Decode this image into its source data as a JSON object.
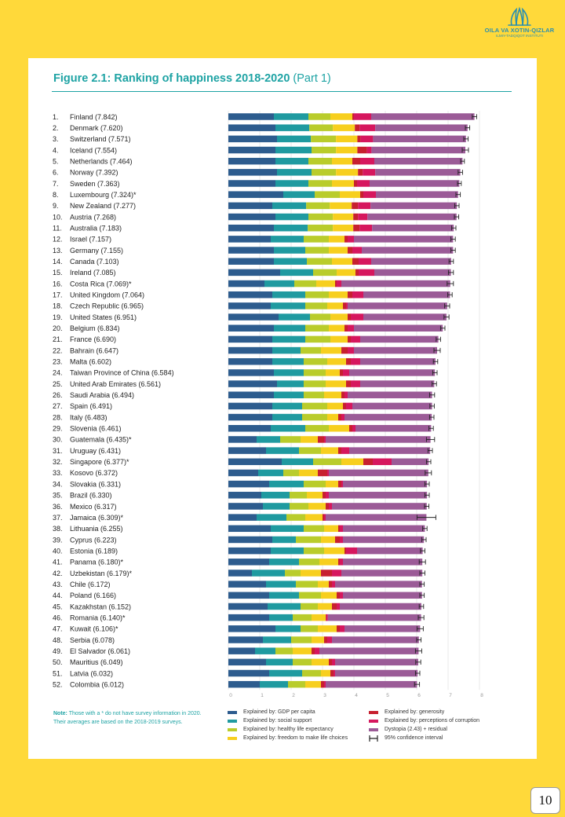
{
  "logo": {
    "line1": "OILA VA XOTIN-QIZLAR",
    "line2": "ILMIY-TADQIQOT INSTITUTI"
  },
  "figure": {
    "title": "Figure 2.1: Ranking of happiness 2018-2020",
    "part": "(Part 1)"
  },
  "note": {
    "label": "Note:",
    "text": "Those with a * do not have survey information in 2020. Their averages are based on the 2018-2019 surveys."
  },
  "legend": {
    "left": [
      {
        "label": "Explained by: GDP per capita",
        "color": "#2D5C8E"
      },
      {
        "label": "Explained by: social support",
        "color": "#1F9AA0"
      },
      {
        "label": "Explained by: healthy life expectancy",
        "color": "#B9CC2B"
      },
      {
        "label": "Explained by: freedom to make life choices",
        "color": "#F7CF1E"
      }
    ],
    "right": [
      {
        "label": "Explained by: generosity",
        "color": "#C7202F"
      },
      {
        "label": "Explained by: perceptions of corruption",
        "color": "#D6175E"
      },
      {
        "label": "Dystopia (2.43) + residual",
        "color": "#9B5B97"
      },
      {
        "label": "95% confidence interval",
        "color": "#222222"
      }
    ]
  },
  "page_number": "10",
  "chart_data": {
    "type": "bar",
    "orientation": "horizontal",
    "stacked": true,
    "xlim": [
      0,
      8
    ],
    "x_ticks": [
      "0",
      "1",
      "2",
      "3",
      "4",
      "5",
      "6",
      "7",
      "8"
    ],
    "grid": true,
    "series": [
      {
        "name": "Explained by: GDP per capita",
        "color": "#2D5C8E"
      },
      {
        "name": "Explained by: social support",
        "color": "#1F9AA0"
      },
      {
        "name": "Explained by: healthy life expectancy",
        "color": "#B9CC2B"
      },
      {
        "name": "Explained by: freedom to make life choices",
        "color": "#F7CF1E"
      },
      {
        "name": "Explained by: generosity",
        "color": "#C7202F"
      },
      {
        "name": "Explained by: perceptions of corruption",
        "color": "#D6175E"
      },
      {
        "name": "Dystopia (2.43) + residual",
        "color": "#9B5B97"
      }
    ],
    "rows": [
      {
        "rank": "1.",
        "label": "Finland (7.842)",
        "parts": [
          1.45,
          1.1,
          0.7,
          0.7,
          0.05,
          0.55,
          3.29
        ],
        "ci": 0.07
      },
      {
        "rank": "2.",
        "label": "Denmark (7.620)",
        "parts": [
          1.5,
          1.08,
          0.75,
          0.7,
          0.15,
          0.5,
          2.94
        ],
        "ci": 0.07
      },
      {
        "rank": "3.",
        "label": "Switzerland (7.571)",
        "parts": [
          1.55,
          1.08,
          0.8,
          0.68,
          0.1,
          0.4,
          2.96
        ],
        "ci": 0.07
      },
      {
        "rank": "4.",
        "label": "Iceland (7.554)",
        "parts": [
          1.5,
          1.15,
          0.78,
          0.68,
          0.3,
          0.15,
          2.99
        ],
        "ci": 0.1
      },
      {
        "rank": "5.",
        "label": "Netherlands (7.464)",
        "parts": [
          1.5,
          1.05,
          0.75,
          0.65,
          0.25,
          0.45,
          2.81
        ],
        "ci": 0.06
      },
      {
        "rank": "6.",
        "label": "Norway (7.392)",
        "parts": [
          1.55,
          1.1,
          0.78,
          0.7,
          0.15,
          0.4,
          2.71
        ],
        "ci": 0.07
      },
      {
        "rank": "7.",
        "label": "Sweden (7.363)",
        "parts": [
          1.5,
          1.05,
          0.75,
          0.7,
          0.1,
          0.4,
          2.86
        ],
        "ci": 0.06
      },
      {
        "rank": "8.",
        "label": "Luxembourg (7.324)*",
        "parts": [
          1.75,
          1.0,
          0.8,
          0.65,
          0.1,
          0.4,
          2.62
        ],
        "ci": 0.07
      },
      {
        "rank": "9.",
        "label": "New Zealand (7.277)",
        "parts": [
          1.4,
          1.08,
          0.75,
          0.7,
          0.2,
          0.4,
          2.75
        ],
        "ci": 0.07
      },
      {
        "rank": "10.",
        "label": "Austria (7.268)",
        "parts": [
          1.5,
          1.05,
          0.78,
          0.65,
          0.15,
          0.3,
          2.84
        ],
        "ci": 0.07
      },
      {
        "rank": "11.",
        "label": "Australia (7.183)",
        "parts": [
          1.45,
          1.08,
          0.8,
          0.65,
          0.2,
          0.4,
          2.6
        ],
        "ci": 0.07
      },
      {
        "rank": "12.",
        "label": "Israel (7.157)",
        "parts": [
          1.35,
          1.05,
          0.8,
          0.5,
          0.1,
          0.2,
          3.16
        ],
        "ci": 0.07
      },
      {
        "rank": "13.",
        "label": "Germany (7.155)",
        "parts": [
          1.45,
          1.0,
          0.75,
          0.6,
          0.15,
          0.3,
          2.91
        ],
        "ci": 0.07
      },
      {
        "rank": "14.",
        "label": "Canada (7.103)",
        "parts": [
          1.45,
          1.05,
          0.8,
          0.65,
          0.2,
          0.4,
          2.55
        ],
        "ci": 0.07
      },
      {
        "rank": "15.",
        "label": "Ireland (7.085)",
        "parts": [
          1.65,
          1.05,
          0.75,
          0.6,
          0.1,
          0.5,
          2.44
        ],
        "ci": 0.08
      },
      {
        "rank": "16.",
        "label": "Costa Rica (7.069)*",
        "parts": [
          1.15,
          0.95,
          0.7,
          0.6,
          0.05,
          0.15,
          3.47
        ],
        "ci": 0.1
      },
      {
        "rank": "17.",
        "label": "United Kingdom (7.064)",
        "parts": [
          1.4,
          1.05,
          0.75,
          0.6,
          0.15,
          0.35,
          2.76
        ],
        "ci": 0.07
      },
      {
        "rank": "18.",
        "label": "Czech Republic (6.965)",
        "parts": [
          1.35,
          1.1,
          0.7,
          0.5,
          0.1,
          0.05,
          3.17
        ],
        "ci": 0.08
      },
      {
        "rank": "19.",
        "label": "United States (6.951)",
        "parts": [
          1.6,
          1.0,
          0.65,
          0.55,
          0.1,
          0.4,
          2.65
        ],
        "ci": 0.08
      },
      {
        "rank": "20.",
        "label": "Belgium (6.834)",
        "parts": [
          1.45,
          1.0,
          0.75,
          0.5,
          0.1,
          0.2,
          2.83
        ],
        "ci": 0.07
      },
      {
        "rank": "21.",
        "label": "France (6.690)",
        "parts": [
          1.4,
          1.05,
          0.8,
          0.55,
          0.1,
          0.3,
          2.49
        ],
        "ci": 0.07
      },
      {
        "rank": "22.",
        "label": "Bahrain (6.647)",
        "parts": [
          1.4,
          0.9,
          0.65,
          0.65,
          0.2,
          0.2,
          2.65
        ],
        "ci": 0.1
      },
      {
        "rank": "23.",
        "label": "Malta (6.602)",
        "parts": [
          1.4,
          1.0,
          0.75,
          0.6,
          0.15,
          0.3,
          2.4
        ],
        "ci": 0.07
      },
      {
        "rank": "24.",
        "label": "Taiwan Province of China (6.584)",
        "parts": [
          1.45,
          0.95,
          0.7,
          0.45,
          0.1,
          0.2,
          2.73
        ],
        "ci": 0.07
      },
      {
        "rank": "25.",
        "label": "United Arab Emirates (6.561)",
        "parts": [
          1.55,
          0.85,
          0.7,
          0.65,
          0.15,
          0.3,
          2.36
        ],
        "ci": 0.07
      },
      {
        "rank": "26.",
        "label": "Saudi Arabia (6.494)",
        "parts": [
          1.45,
          0.95,
          0.65,
          0.55,
          0.1,
          0.1,
          2.69
        ],
        "ci": 0.08
      },
      {
        "rank": "27.",
        "label": "Spain (6.491)",
        "parts": [
          1.4,
          0.95,
          0.8,
          0.5,
          0.1,
          0.2,
          2.54
        ],
        "ci": 0.07
      },
      {
        "rank": "28.",
        "label": "Italy (6.483)",
        "parts": [
          1.4,
          0.95,
          0.8,
          0.35,
          0.1,
          0.1,
          2.78
        ],
        "ci": 0.07
      },
      {
        "rank": "29.",
        "label": "Slovenia (6.461)",
        "parts": [
          1.35,
          1.1,
          0.75,
          0.65,
          0.1,
          0.1,
          2.41
        ],
        "ci": 0.07
      },
      {
        "rank": "30.",
        "label": "Guatemala (6.435)*",
        "parts": [
          0.9,
          0.75,
          0.65,
          0.55,
          0.2,
          0.05,
          3.34
        ],
        "ci": 0.13
      },
      {
        "rank": "31.",
        "label": "Uruguay (6.431)",
        "parts": [
          1.2,
          1.05,
          0.7,
          0.55,
          0.1,
          0.25,
          2.58
        ],
        "ci": 0.07
      },
      {
        "rank": "32.",
        "label": "Singapore (6.377)*",
        "parts": [
          1.7,
          1.0,
          0.9,
          0.7,
          0.3,
          0.6,
          1.18
        ],
        "ci": 0.07
      },
      {
        "rank": "33.",
        "label": "Kosovo (6.372)",
        "parts": [
          0.95,
          0.8,
          0.5,
          0.6,
          0.3,
          0.05,
          3.17
        ],
        "ci": 0.1
      },
      {
        "rank": "34.",
        "label": "Slovakia (6.331)",
        "parts": [
          1.3,
          1.1,
          0.7,
          0.4,
          0.1,
          0.05,
          2.68
        ],
        "ci": 0.07
      },
      {
        "rank": "35.",
        "label": "Brazil (6.330)",
        "parts": [
          1.05,
          0.9,
          0.55,
          0.5,
          0.1,
          0.1,
          3.13
        ],
        "ci": 0.07
      },
      {
        "rank": "36.",
        "label": "Mexico (6.317)",
        "parts": [
          1.1,
          0.85,
          0.6,
          0.55,
          0.1,
          0.1,
          3.02
        ],
        "ci": 0.07
      },
      {
        "rank": "37.",
        "label": "Jamaica (6.309)*",
        "parts": [
          0.9,
          0.95,
          0.6,
          0.55,
          0.05,
          0.05,
          3.21
        ],
        "ci": 0.3
      },
      {
        "rank": "38.",
        "label": "Lithuania (6.255)",
        "parts": [
          1.35,
          1.05,
          0.65,
          0.45,
          0.05,
          0.1,
          2.61
        ],
        "ci": 0.07
      },
      {
        "rank": "39.",
        "label": "Cyprus (6.223)",
        "parts": [
          1.4,
          0.75,
          0.8,
          0.45,
          0.15,
          0.1,
          2.58
        ],
        "ci": 0.07
      },
      {
        "rank": "40.",
        "label": "Estonia (6.189)",
        "parts": [
          1.35,
          1.05,
          0.65,
          0.65,
          0.05,
          0.35,
          2.09
        ],
        "ci": 0.07
      },
      {
        "rank": "41.",
        "label": "Panama (6.180)*",
        "parts": [
          1.3,
          0.95,
          0.65,
          0.6,
          0.05,
          0.1,
          2.53
        ],
        "ci": 0.1
      },
      {
        "rank": "42.",
        "label": "Uzbekistan (6.179)*",
        "parts": [
          0.75,
          1.05,
          0.5,
          0.65,
          0.35,
          0.3,
          2.58
        ],
        "ci": 0.08
      },
      {
        "rank": "43.",
        "label": "Chile (6.172)",
        "parts": [
          1.2,
          0.95,
          0.7,
          0.35,
          0.1,
          0.1,
          2.77
        ],
        "ci": 0.07
      },
      {
        "rank": "44.",
        "label": "Poland (6.166)",
        "parts": [
          1.3,
          0.95,
          0.7,
          0.5,
          0.1,
          0.1,
          2.52
        ],
        "ci": 0.07
      },
      {
        "rank": "45.",
        "label": "Kazakhstan (6.152)",
        "parts": [
          1.25,
          1.05,
          0.55,
          0.45,
          0.15,
          0.1,
          2.6
        ],
        "ci": 0.07
      },
      {
        "rank": "46.",
        "label": "Romania (6.140)*",
        "parts": [
          1.3,
          0.75,
          0.6,
          0.45,
          0.02,
          0.05,
          2.97
        ],
        "ci": 0.09
      },
      {
        "rank": "47.",
        "label": "Kuwait (6.106)*",
        "parts": [
          1.5,
          0.8,
          0.55,
          0.6,
          0.1,
          0.15,
          2.41
        ],
        "ci": 0.1
      },
      {
        "rank": "48.",
        "label": "Serbia (6.078)",
        "parts": [
          1.1,
          0.9,
          0.65,
          0.4,
          0.1,
          0.15,
          2.77
        ],
        "ci": 0.07
      },
      {
        "rank": "49.",
        "label": "El Salvador (6.061)",
        "parts": [
          0.85,
          0.65,
          0.55,
          0.6,
          0.1,
          0.15,
          3.16
        ],
        "ci": 0.1
      },
      {
        "rank": "50.",
        "label": "Mauritius (6.049)",
        "parts": [
          1.2,
          0.85,
          0.6,
          0.55,
          0.1,
          0.1,
          2.65
        ],
        "ci": 0.08
      },
      {
        "rank": "51.",
        "label": "Latvia (6.032)",
        "parts": [
          1.3,
          1.05,
          0.6,
          0.3,
          0.1,
          0.05,
          2.63
        ],
        "ci": 0.07
      },
      {
        "rank": "52.",
        "label": "Colombia (6.012)",
        "parts": [
          1.0,
          0.9,
          0.55,
          0.5,
          0.1,
          0.05,
          2.91
        ],
        "ci": 0.08
      }
    ]
  }
}
